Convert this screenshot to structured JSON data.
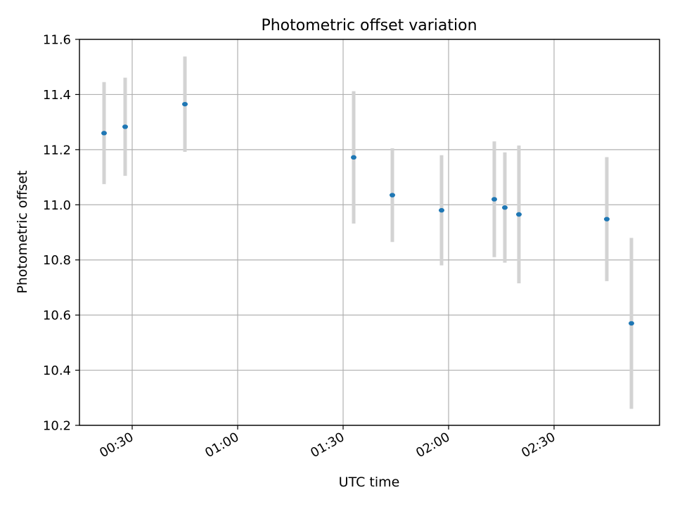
{
  "chart_data": {
    "type": "scatter",
    "title": "Photometric offset variation",
    "xlabel": "UTC time",
    "ylabel": "Photometric offset",
    "x_ticks": [
      "00:30",
      "01:00",
      "01:30",
      "02:00",
      "02:30"
    ],
    "x_tick_minutes": [
      30,
      60,
      90,
      120,
      150
    ],
    "xlim": [
      "00:15",
      "03:00"
    ],
    "y_ticks": [
      "10.2",
      "10.4",
      "10.6",
      "10.8",
      "11.0",
      "11.2",
      "11.4",
      "11.6"
    ],
    "ylim": [
      10.2,
      11.6
    ],
    "grid": true,
    "colors": {
      "point": "#1f77b4",
      "errorbar": "#d3d3d3",
      "grid": "#b0b0b0",
      "axes": "#000000"
    },
    "series": [
      {
        "points": [
          {
            "x": "00:22",
            "y": 11.26,
            "yerr": 0.185
          },
          {
            "x": "00:28",
            "y": 11.283,
            "yerr": 0.178
          },
          {
            "x": "00:45",
            "y": 11.365,
            "yerr": 0.173
          },
          {
            "x": "01:33",
            "y": 11.172,
            "yerr": 0.24
          },
          {
            "x": "01:44",
            "y": 11.035,
            "yerr": 0.17
          },
          {
            "x": "01:58",
            "y": 10.98,
            "yerr": 0.2
          },
          {
            "x": "02:13",
            "y": 11.02,
            "yerr": 0.21
          },
          {
            "x": "02:16",
            "y": 10.99,
            "yerr": 0.2
          },
          {
            "x": "02:20",
            "y": 10.965,
            "yerr": 0.25
          },
          {
            "x": "02:45",
            "y": 10.948,
            "yerr": 0.225
          },
          {
            "x": "02:52",
            "y": 10.57,
            "yerr": 0.31
          }
        ]
      }
    ]
  }
}
